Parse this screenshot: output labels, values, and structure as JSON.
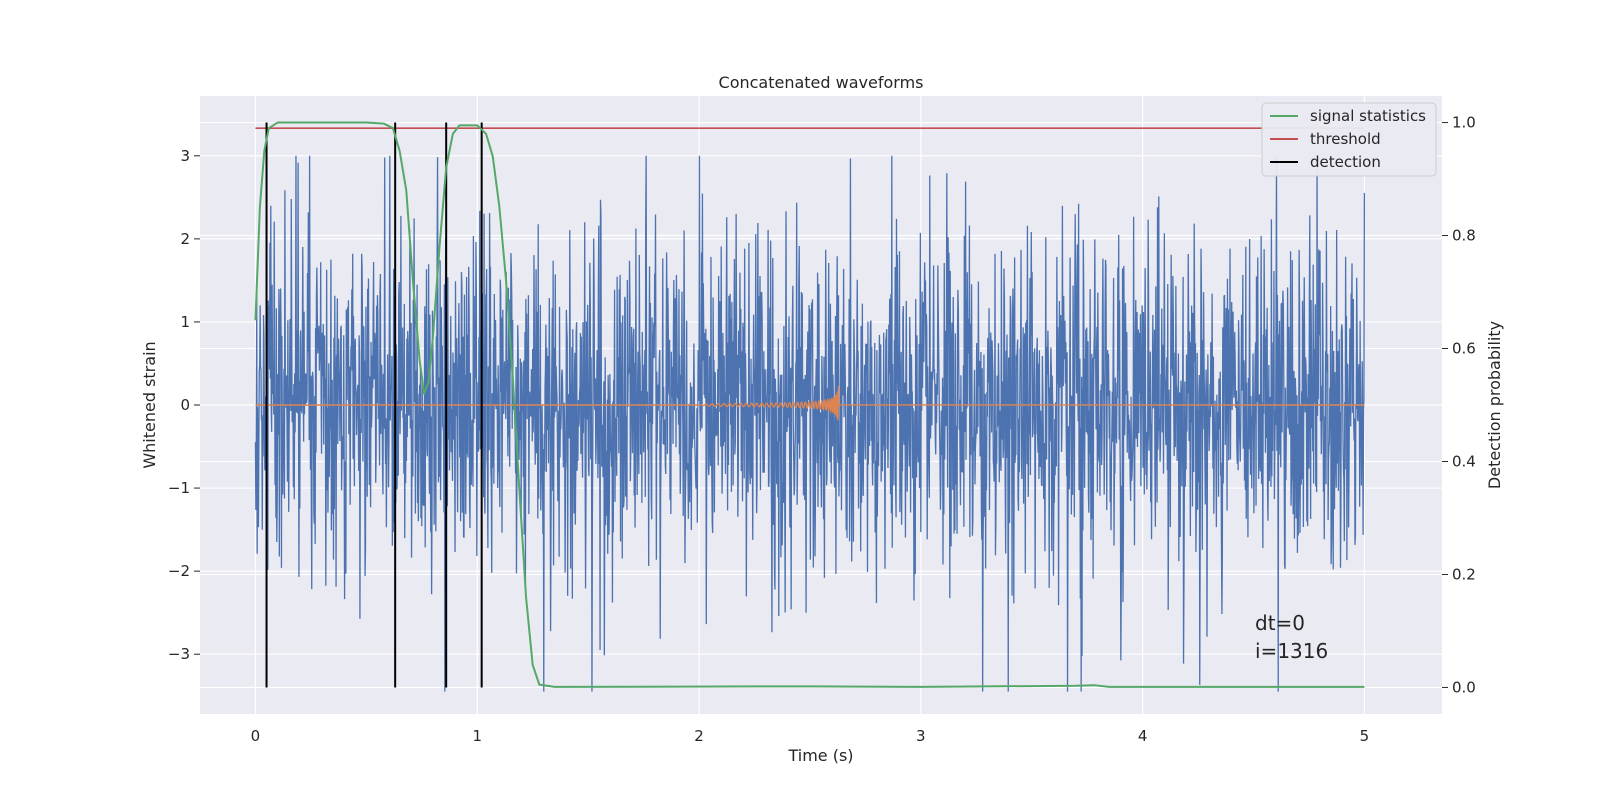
{
  "chart_data": {
    "type": "line",
    "title": "Concatenated waveforms",
    "xlabel": "Time (s)",
    "ylabel": "Whitened strain",
    "y2label": "Detection probability",
    "xlim": [
      -0.25,
      5.35
    ],
    "ylim": [
      -3.72,
      3.72
    ],
    "y2lim": [
      -0.047,
      1.047
    ],
    "xticks": [
      0,
      1,
      2,
      3,
      4,
      5
    ],
    "yticks": [
      -3,
      -2,
      -1,
      0,
      1,
      2,
      3
    ],
    "y2ticks": [
      0.0,
      0.2,
      0.4,
      0.6,
      0.8,
      1.0
    ],
    "xtick_labels": [
      "0",
      "1",
      "2",
      "3",
      "4",
      "5"
    ],
    "ytick_labels": [
      "−3",
      "−2",
      "−1",
      "0",
      "1",
      "2",
      "3"
    ],
    "y2tick_labels": [
      "0.0",
      "0.2",
      "0.4",
      "0.6",
      "0.8",
      "1.0"
    ],
    "grid": true,
    "legend_position": "top-right",
    "legend": [
      {
        "label": "signal statistics",
        "color": "#55a868"
      },
      {
        "label": "threshold",
        "color": "#c44e52"
      },
      {
        "label": "detection",
        "color": "#000000"
      }
    ],
    "series": [
      {
        "role": "whitened-noise",
        "color": "#4c72b0",
        "x_range": [
          0,
          5
        ],
        "approx_amplitude": 2.8
      },
      {
        "role": "injected-signal",
        "color": "#dd8452",
        "x_range": [
          0,
          5
        ],
        "chirp_start": 2.0,
        "chirp_end": 2.63,
        "peak_amplitude": 0.5
      },
      {
        "name": "signal statistics",
        "axis": "right",
        "color": "#55a868",
        "points": [
          [
            0.0,
            0.65
          ],
          [
            0.02,
            0.85
          ],
          [
            0.04,
            0.95
          ],
          [
            0.06,
            0.99
          ],
          [
            0.1,
            1.0
          ],
          [
            0.3,
            1.0
          ],
          [
            0.5,
            1.0
          ],
          [
            0.58,
            0.998
          ],
          [
            0.62,
            0.99
          ],
          [
            0.65,
            0.95
          ],
          [
            0.68,
            0.88
          ],
          [
            0.71,
            0.72
          ],
          [
            0.74,
            0.58
          ],
          [
            0.76,
            0.52
          ],
          [
            0.78,
            0.54
          ],
          [
            0.8,
            0.62
          ],
          [
            0.83,
            0.78
          ],
          [
            0.86,
            0.92
          ],
          [
            0.89,
            0.98
          ],
          [
            0.92,
            0.995
          ],
          [
            1.0,
            0.995
          ],
          [
            1.04,
            0.98
          ],
          [
            1.07,
            0.94
          ],
          [
            1.1,
            0.85
          ],
          [
            1.13,
            0.72
          ],
          [
            1.16,
            0.55
          ],
          [
            1.19,
            0.35
          ],
          [
            1.22,
            0.16
          ],
          [
            1.25,
            0.04
          ],
          [
            1.28,
            0.005
          ],
          [
            1.35,
            0.001
          ],
          [
            2.5,
            0.002
          ],
          [
            3.0,
            0.001
          ],
          [
            3.7,
            0.003
          ],
          [
            3.78,
            0.004
          ],
          [
            3.85,
            0.001
          ],
          [
            5.0,
            0.001
          ]
        ]
      },
      {
        "name": "threshold",
        "axis": "right",
        "color": "#c44e52",
        "x_range": [
          0,
          5
        ],
        "value": 0.99
      }
    ],
    "detections_s": [
      0.05,
      0.63,
      0.86,
      1.02
    ],
    "annotations": [
      "dt=0",
      "i=1316"
    ]
  }
}
